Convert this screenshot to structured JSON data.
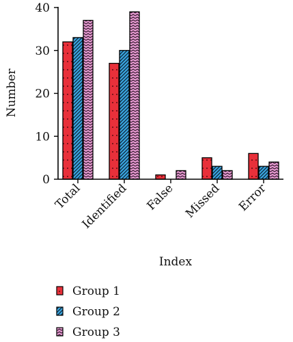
{
  "chart_data": {
    "type": "bar",
    "categories": [
      "Total",
      "Identified",
      "False",
      "Missed",
      "Error"
    ],
    "series": [
      {
        "name": "Group 1",
        "values": [
          32,
          27,
          1,
          5,
          6
        ],
        "color": "#e8303a",
        "pattern": "dots"
      },
      {
        "name": "Group 2",
        "values": [
          33,
          30,
          0,
          3,
          3
        ],
        "color": "#3aa6e0",
        "pattern": "diagonal"
      },
      {
        "name": "Group 3",
        "values": [
          37,
          39,
          2,
          2,
          4
        ],
        "color": "#e59ad0",
        "pattern": "zigzag"
      }
    ],
    "xlabel": "Index",
    "ylabel": "Number",
    "ylim": [
      0,
      40
    ],
    "yticks": [
      0,
      10,
      20,
      30,
      40
    ],
    "grid": false,
    "legend_position": "bottom-left"
  }
}
